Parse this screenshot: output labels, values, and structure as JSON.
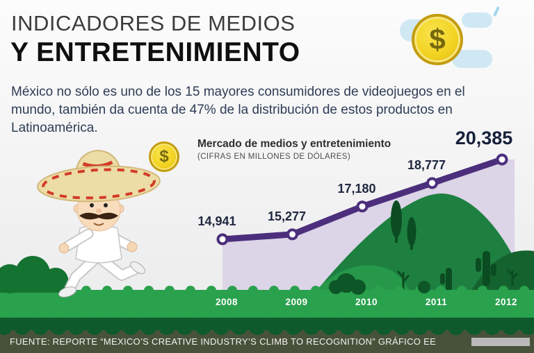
{
  "header": {
    "title_line1": "INDICADORES DE MEDIOS",
    "title_line2": "Y ENTRETENIMIENTO",
    "intro": "México no sólo es uno de los 15 mayores consumidores de videojuegos en el mundo, también da cuenta de 47% de la distribución de estos productos en Latinoamérica."
  },
  "coin": {
    "symbol": "$"
  },
  "chart": {
    "title": "Mercado de medios y entretenimiento",
    "subtitle": "(CIFRAS EN MILLONES DE DÓLARES)"
  },
  "chart_data": {
    "type": "line",
    "title": "Mercado de medios y entretenimiento",
    "subtitle": "(CIFRAS EN MILLONES DE DÓLARES)",
    "categories": [
      "2008",
      "2009",
      "2010",
      "2011",
      "2012"
    ],
    "values": [
      14941,
      15277,
      17180,
      18777,
      20385
    ],
    "value_labels": [
      "14,941",
      "15,277",
      "17,180",
      "18,777",
      "20,385"
    ],
    "unit": "millones de dólares",
    "ylim": [
      14500,
      21000
    ],
    "line_color": "#4c2f7c",
    "area_color": "#dcd4e7",
    "marker_color": "#ffffff",
    "grid": false,
    "legend": "none"
  },
  "footer": {
    "source": "FUENTE: REPORTE “MEXICO’S CREATIVE INDUSTRY’S CLIMB TO RECOGNITION” GRÁFICO EE"
  }
}
